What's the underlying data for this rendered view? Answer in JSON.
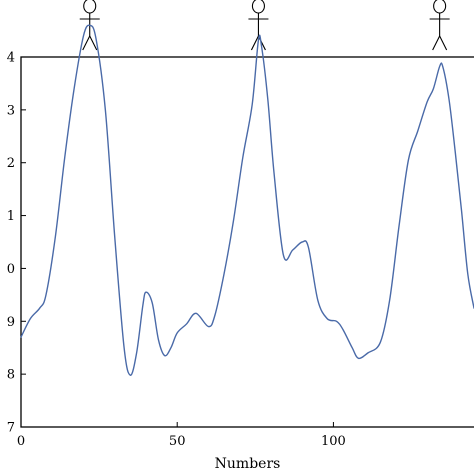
{
  "chart_data": {
    "type": "line",
    "title": "",
    "xlabel": "Numbers",
    "ylabel": "",
    "xlim": [
      0,
      145
    ],
    "ylim": [
      0,
      7
    ],
    "x_ticks": [
      {
        "value": 0,
        "label": "0"
      },
      {
        "value": 50,
        "label": "50"
      },
      {
        "value": 100,
        "label": "100"
      }
    ],
    "y_ticks": [
      {
        "value": 0,
        "label": "7"
      },
      {
        "value": 1,
        "label": "8"
      },
      {
        "value": 2,
        "label": "9"
      },
      {
        "value": 3,
        "label": "0"
      },
      {
        "value": 4,
        "label": "1"
      },
      {
        "value": 5,
        "label": "2"
      },
      {
        "value": 6,
        "label": "3"
      },
      {
        "value": 7,
        "label": "4"
      }
    ],
    "grid": false,
    "legend": "none",
    "line_color": "#4a6aa8",
    "figure_icon": "stick-figure-icon",
    "figure_positions_x": [
      22,
      76,
      134
    ],
    "series": [
      {
        "x": [
          0,
          3,
          6,
          8,
          11,
          14,
          17,
          20,
          22,
          24,
          27,
          30,
          33,
          35,
          37,
          39,
          40,
          42,
          44,
          46,
          48,
          50,
          53,
          56,
          60,
          62,
          65,
          68,
          71,
          74,
          76,
          77,
          79,
          81,
          84,
          87,
          90,
          92,
          95,
          98,
          101,
          103,
          106,
          108,
          111,
          115,
          118,
          121,
          124,
          127,
          130,
          132,
          134,
          135,
          137,
          139,
          141,
          143,
          145
        ],
        "y": [
          1.7,
          2.05,
          2.25,
          2.5,
          3.6,
          5.1,
          6.4,
          7.4,
          7.6,
          7.35,
          6.0,
          3.6,
          1.5,
          0.98,
          1.4,
          2.3,
          2.55,
          2.35,
          1.65,
          1.35,
          1.5,
          1.78,
          1.95,
          2.15,
          1.9,
          2.1,
          2.9,
          3.9,
          5.1,
          6.1,
          7.32,
          7.2,
          6.2,
          4.8,
          3.25,
          3.35,
          3.5,
          3.4,
          2.4,
          2.05,
          2.0,
          1.85,
          1.5,
          1.3,
          1.4,
          1.6,
          2.4,
          3.8,
          5.05,
          5.6,
          6.15,
          6.4,
          6.82,
          6.82,
          6.2,
          5.2,
          4.1,
          2.9,
          2.25
        ]
      }
    ]
  }
}
